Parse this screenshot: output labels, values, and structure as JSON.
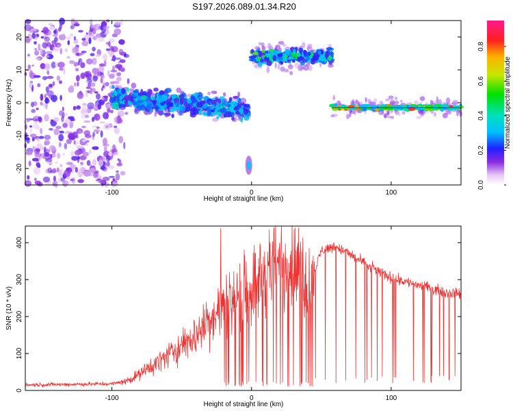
{
  "title": "S197.2026.089.01.34.R20",
  "chart_data": [
    {
      "type": "heatmap",
      "name": "spectrogram",
      "xlabel": "Height of straight line (km)",
      "ylabel": "Frequency (Hz)",
      "xlim": [
        -162,
        150
      ],
      "ylim": [
        -25,
        25
      ],
      "xticks": [
        -100,
        0,
        100
      ],
      "xtick_labels": [
        "-100",
        "0",
        "100"
      ],
      "yticks": [
        20,
        10,
        0,
        -10,
        -20
      ],
      "ytick_labels": [
        "20",
        "10",
        "0",
        "-10",
        "-20"
      ],
      "colorbar": {
        "label": "Normalized spectral amplitude",
        "range": [
          0,
          0.95
        ],
        "ticks": [
          0.0,
          0.2,
          0.4,
          0.6,
          0.8
        ],
        "tick_labels": [
          "0.0",
          "0.2",
          "0.4",
          "0.6",
          "0.8"
        ]
      },
      "regions": [
        {
          "name": "noise",
          "x_range": [
            -162,
            -92
          ],
          "freq_range": [
            -25,
            25
          ],
          "amplitude": 0.1
        },
        {
          "name": "descending-band",
          "x_range": [
            -100,
            -2
          ],
          "freq_start": 1.5,
          "freq_end": -2,
          "width_hz": 3,
          "amplitude": 0.45
        },
        {
          "name": "upper-band",
          "x_range": [
            0,
            58
          ],
          "freq_center": 14,
          "width_hz": 2,
          "amplitude": 0.5
        },
        {
          "name": "low-spot",
          "x_range": [
            -3,
            -1
          ],
          "freq_center": -19,
          "width_hz": 2,
          "amplitude": 0.3
        },
        {
          "name": "right-band",
          "x_range": [
            58,
            150
          ],
          "freq_center": -1.5,
          "width_hz": 1,
          "amplitude": 0.65
        }
      ]
    },
    {
      "type": "line",
      "name": "snr",
      "xlabel": "Height of straight line (km)",
      "ylabel": "SNR (10 * v/v)",
      "xlim": [
        -162,
        150
      ],
      "ylim": [
        0,
        445
      ],
      "xticks": [
        -100,
        0,
        100
      ],
      "xtick_labels": [
        "-100",
        "0",
        "100"
      ],
      "yticks": [
        0,
        100,
        200,
        300,
        400
      ],
      "ytick_labels": [
        "0",
        "100",
        "200",
        "300",
        "400"
      ],
      "color": "#ee3333",
      "envelope": [
        {
          "x": -162,
          "y": 15
        },
        {
          "x": -100,
          "y": 18
        },
        {
          "x": -90,
          "y": 25
        },
        {
          "x": -80,
          "y": 45
        },
        {
          "x": -70,
          "y": 70
        },
        {
          "x": -60,
          "y": 95
        },
        {
          "x": -50,
          "y": 120
        },
        {
          "x": -40,
          "y": 150
        },
        {
          "x": -30,
          "y": 190
        },
        {
          "x": -20,
          "y": 230
        },
        {
          "x": -10,
          "y": 260
        },
        {
          "x": 0,
          "y": 280
        },
        {
          "x": 10,
          "y": 320
        },
        {
          "x": 20,
          "y": 340
        },
        {
          "x": 30,
          "y": 340
        },
        {
          "x": 40,
          "y": 300
        },
        {
          "x": 45,
          "y": 320
        },
        {
          "x": 50,
          "y": 380
        },
        {
          "x": 60,
          "y": 390
        },
        {
          "x": 70,
          "y": 370
        },
        {
          "x": 80,
          "y": 345
        },
        {
          "x": 90,
          "y": 325
        },
        {
          "x": 100,
          "y": 305
        },
        {
          "x": 110,
          "y": 295
        },
        {
          "x": 120,
          "y": 285
        },
        {
          "x": 130,
          "y": 275
        },
        {
          "x": 140,
          "y": 265
        },
        {
          "x": 150,
          "y": 262
        }
      ],
      "peak": {
        "x": -22,
        "y": 440
      }
    }
  ]
}
